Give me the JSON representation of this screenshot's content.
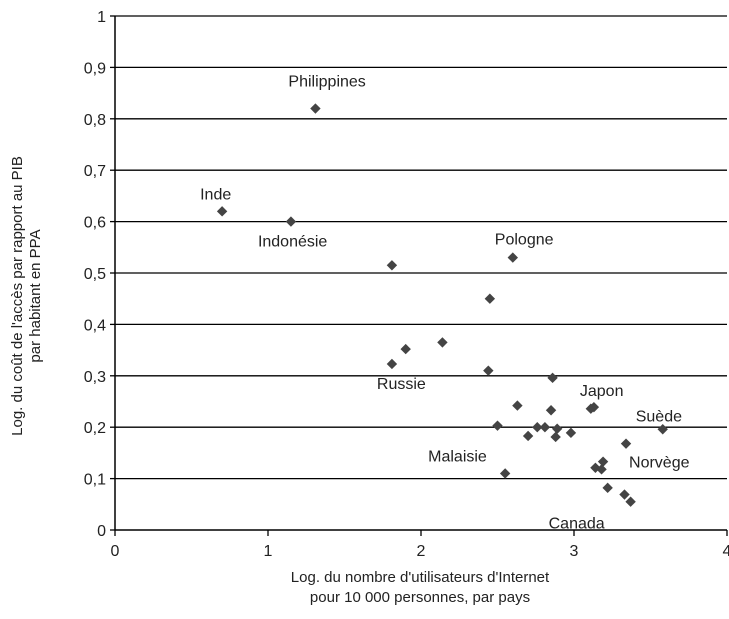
{
  "chart_data": {
    "type": "scatter",
    "xlabel": [
      "Log. du nombre d'utilisateurs d'Internet",
      "pour 10 000 personnes, par pays"
    ],
    "ylabel": [
      "Log. du coût de l'accès par rapport au PIB",
      "par habitant en PPA"
    ],
    "xlim": [
      0,
      4
    ],
    "ylim": [
      0,
      1
    ],
    "x_ticks": [
      "0",
      "1",
      "2",
      "3",
      "4"
    ],
    "y_ticks": [
      "0",
      "0,1",
      "0,2",
      "0,3",
      "0,4",
      "0,5",
      "0,6",
      "0,7",
      "0,8",
      "0,9",
      "1"
    ],
    "grid": "horizontal",
    "colors": {
      "marker": "#444444",
      "grid": "#000000"
    },
    "points": [
      {
        "x": 1.31,
        "y": 0.82,
        "label": "Philippines"
      },
      {
        "x": 0.7,
        "y": 0.62,
        "label": "Inde"
      },
      {
        "x": 1.15,
        "y": 0.6,
        "label": "Indonésie"
      },
      {
        "x": 2.6,
        "y": 0.53,
        "label": "Pologne"
      },
      {
        "x": 1.81,
        "y": 0.515
      },
      {
        "x": 2.45,
        "y": 0.45
      },
      {
        "x": 2.14,
        "y": 0.365
      },
      {
        "x": 1.9,
        "y": 0.352
      },
      {
        "x": 1.81,
        "y": 0.323,
        "label": "Russie"
      },
      {
        "x": 2.44,
        "y": 0.31
      },
      {
        "x": 2.86,
        "y": 0.296
      },
      {
        "x": 2.63,
        "y": 0.242
      },
      {
        "x": 3.11,
        "y": 0.236
      },
      {
        "x": 3.13,
        "y": 0.239,
        "label": "Japon"
      },
      {
        "x": 2.85,
        "y": 0.233
      },
      {
        "x": 3.58,
        "y": 0.196,
        "label": "Suède"
      },
      {
        "x": 2.5,
        "y": 0.203
      },
      {
        "x": 2.76,
        "y": 0.2
      },
      {
        "x": 2.81,
        "y": 0.2
      },
      {
        "x": 2.89,
        "y": 0.197
      },
      {
        "x": 2.98,
        "y": 0.189
      },
      {
        "x": 2.7,
        "y": 0.183
      },
      {
        "x": 2.88,
        "y": 0.181
      },
      {
        "x": 3.34,
        "y": 0.168,
        "label": "Norvège"
      },
      {
        "x": 3.19,
        "y": 0.133
      },
      {
        "x": 3.14,
        "y": 0.121
      },
      {
        "x": 3.18,
        "y": 0.118
      },
      {
        "x": 2.55,
        "y": 0.11,
        "label": "Malaisie"
      },
      {
        "x": 3.22,
        "y": 0.082
      },
      {
        "x": 3.33,
        "y": 0.069
      },
      {
        "x": 3.37,
        "y": 0.055,
        "label": "Canada"
      }
    ]
  }
}
